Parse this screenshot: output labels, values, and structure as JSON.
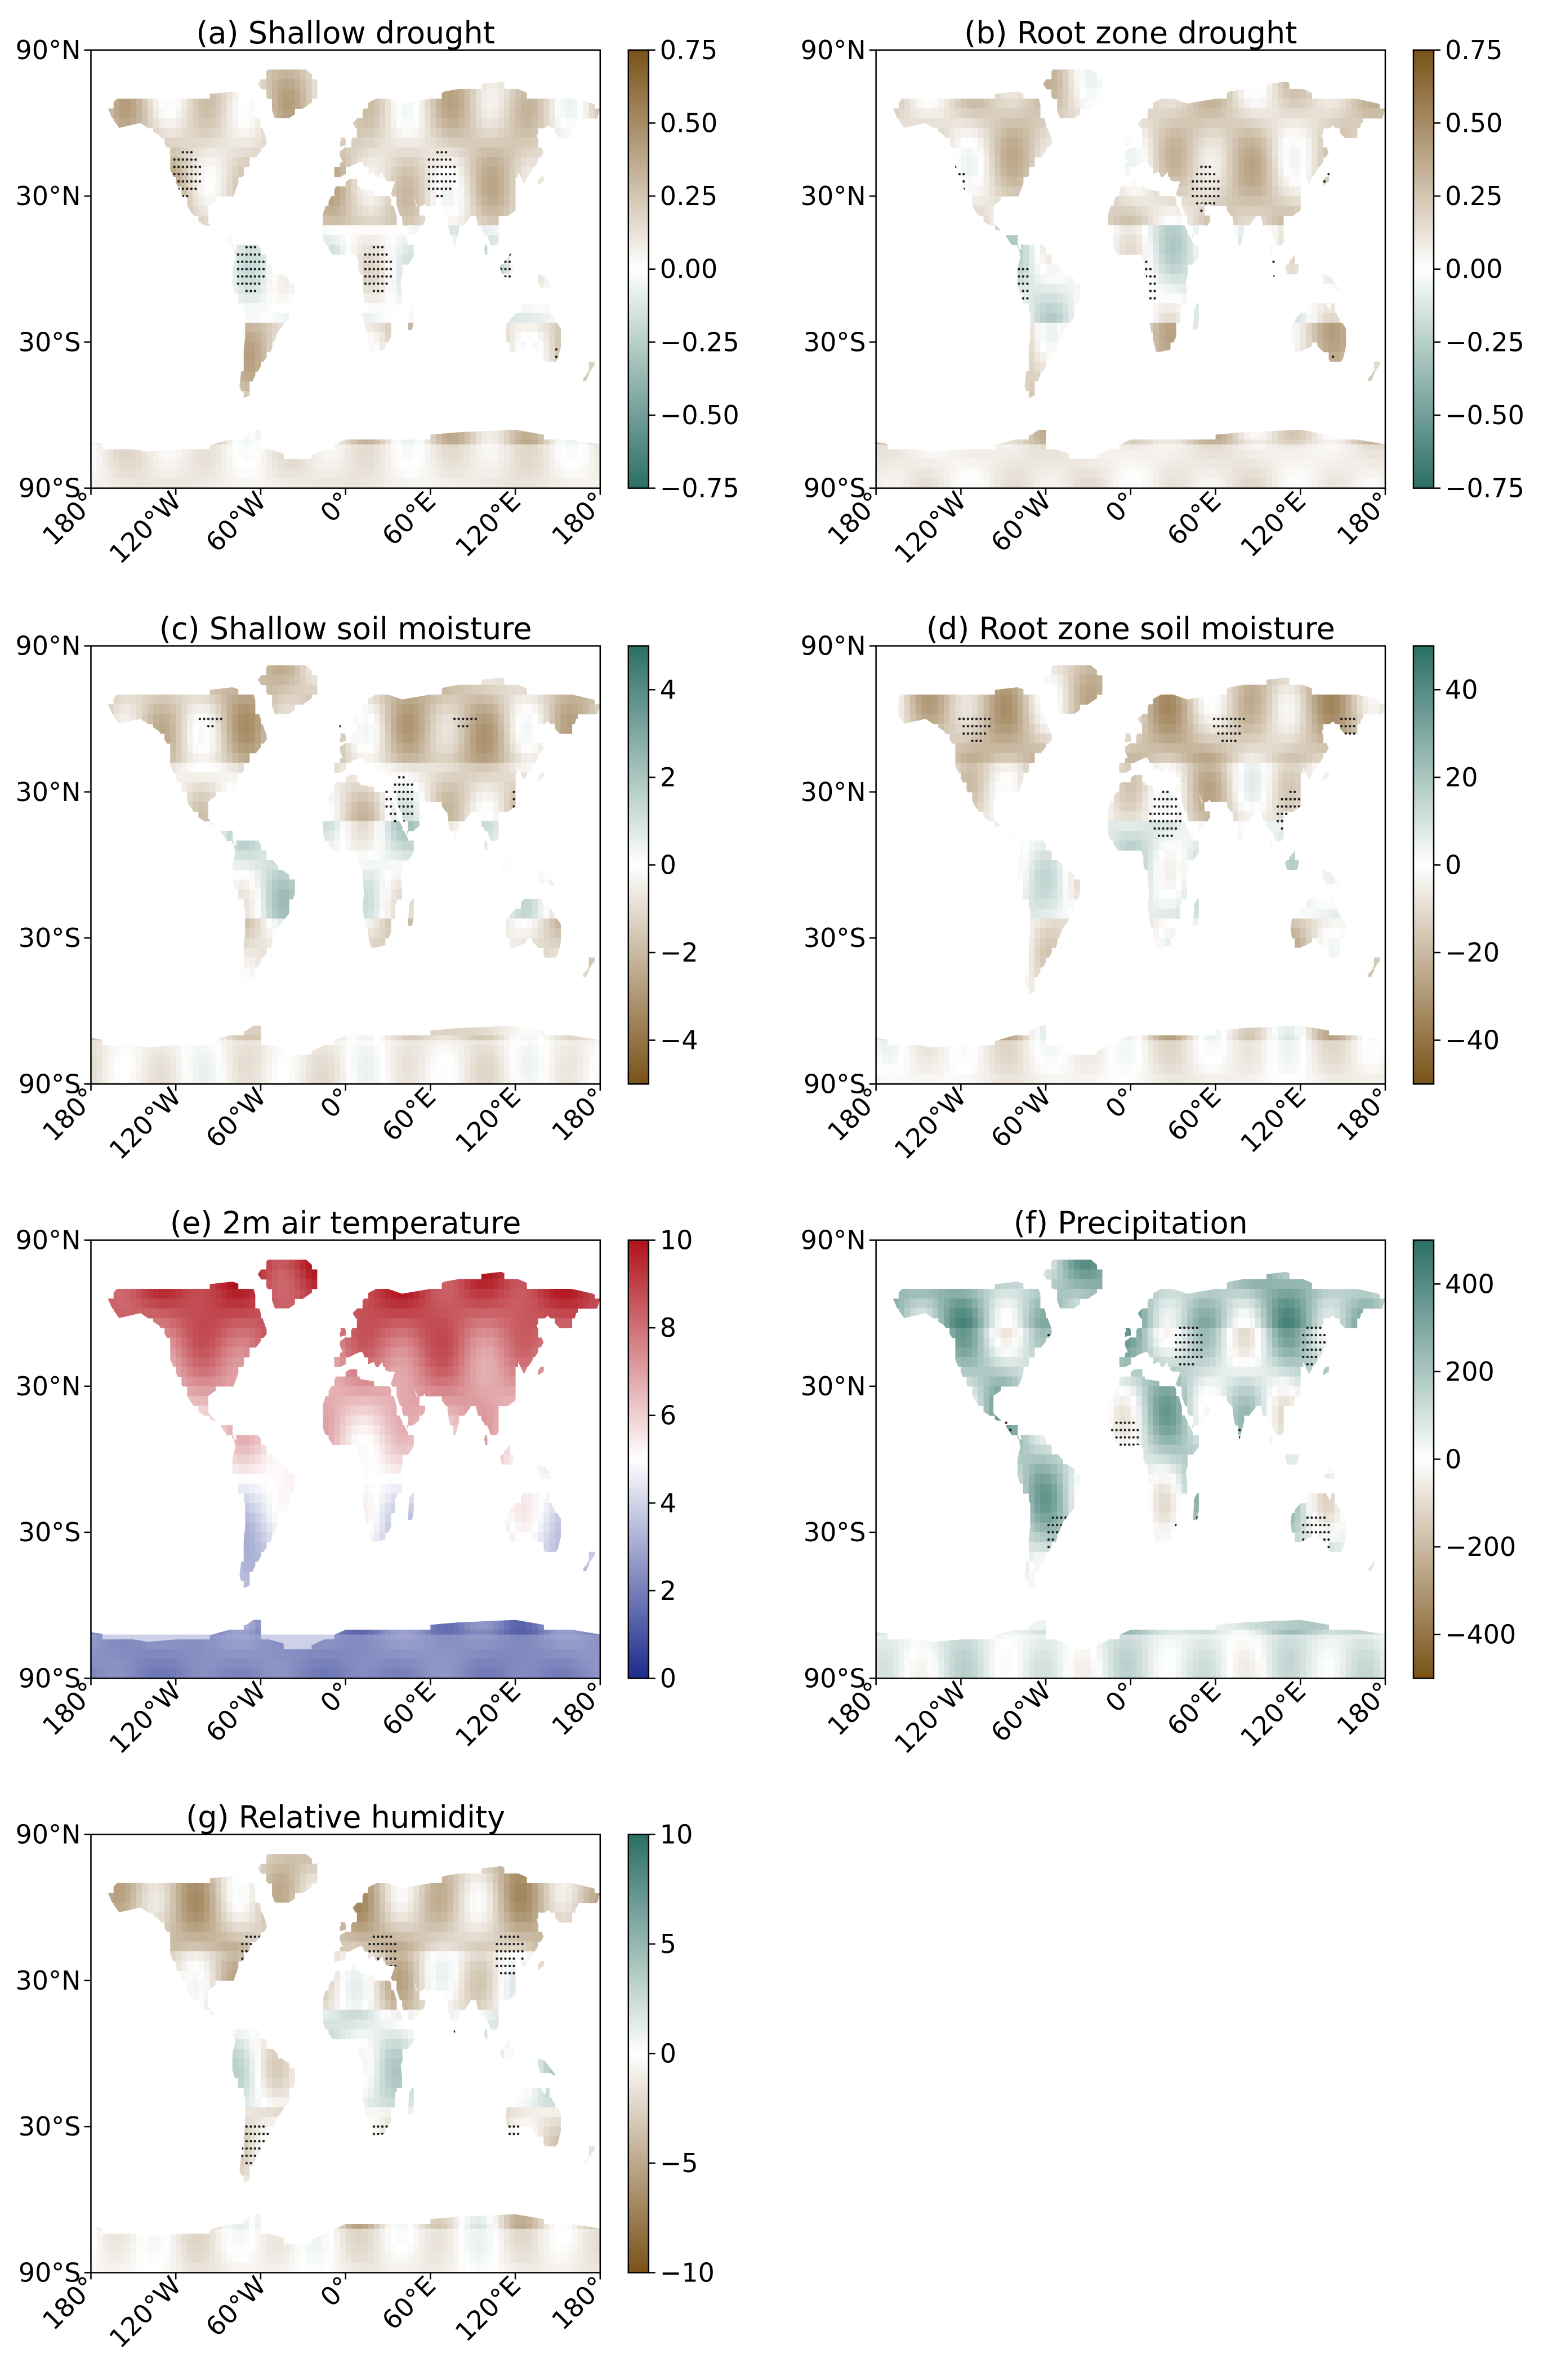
{
  "figure": {
    "x_ticks": [
      "180°",
      "120°W",
      "60°W",
      "0°",
      "60°E",
      "120°E",
      "180°"
    ],
    "y_ticks": [
      "90°N",
      "30°N",
      "30°S",
      "90°S"
    ]
  },
  "chart_data": [
    {
      "type": "heatmap",
      "title": "(a) Shallow drought",
      "xlim": [
        -180,
        180
      ],
      "ylim": [
        -90,
        90
      ],
      "colormap": [
        "#2b6f63",
        "#ffffff",
        "#7a5218"
      ],
      "clim": [
        -0.75,
        0.75
      ],
      "colorbar_ticks": [
        "0.75",
        "0.50",
        "0.25",
        "0.00",
        "−0.25",
        "−0.50",
        "−0.75"
      ],
      "stippling": true,
      "grid": false
    },
    {
      "type": "heatmap",
      "title": "(b) Root zone drought",
      "xlim": [
        -180,
        180
      ],
      "ylim": [
        -90,
        90
      ],
      "colormap": [
        "#2b6f63",
        "#ffffff",
        "#7a5218"
      ],
      "clim": [
        -0.75,
        0.75
      ],
      "colorbar_ticks": [
        "0.75",
        "0.50",
        "0.25",
        "0.00",
        "−0.25",
        "−0.50",
        "−0.75"
      ],
      "stippling": true,
      "grid": false
    },
    {
      "type": "heatmap",
      "title": "(c) Shallow soil moisture",
      "xlim": [
        -180,
        180
      ],
      "ylim": [
        -90,
        90
      ],
      "colormap": [
        "#7a5218",
        "#ffffff",
        "#2b6f63"
      ],
      "clim": [
        -5,
        5
      ],
      "colorbar_ticks": [
        "4",
        "2",
        "0",
        "−2",
        "−4"
      ],
      "stippling": true,
      "grid": false
    },
    {
      "type": "heatmap",
      "title": "(d) Root zone soil moisture",
      "xlim": [
        -180,
        180
      ],
      "ylim": [
        -90,
        90
      ],
      "colormap": [
        "#7a5218",
        "#ffffff",
        "#2b6f63"
      ],
      "clim": [
        -50,
        50
      ],
      "colorbar_ticks": [
        "40",
        "20",
        "0",
        "−20",
        "−40"
      ],
      "stippling": true,
      "grid": false
    },
    {
      "type": "heatmap",
      "title": "(e) 2m air temperature",
      "xlim": [
        -180,
        180
      ],
      "ylim": [
        -90,
        90
      ],
      "colormap": [
        "#1c2a8c",
        "#ffffff",
        "#b0121b"
      ],
      "clim": [
        0,
        10
      ],
      "colorbar_ticks": [
        "10",
        "8",
        "6",
        "4",
        "2",
        "0"
      ],
      "stippling": false,
      "grid": false
    },
    {
      "type": "heatmap",
      "title": "(f) Precipitation",
      "xlim": [
        -180,
        180
      ],
      "ylim": [
        -90,
        90
      ],
      "colormap": [
        "#7a5218",
        "#ffffff",
        "#2b6f63"
      ],
      "clim": [
        -500,
        500
      ],
      "colorbar_ticks": [
        "400",
        "200",
        "0",
        "−200",
        "−400"
      ],
      "stippling": true,
      "grid": false
    },
    {
      "type": "heatmap",
      "title": "(g) Relative humidity",
      "xlim": [
        -180,
        180
      ],
      "ylim": [
        -90,
        90
      ],
      "colormap": [
        "#7a5218",
        "#ffffff",
        "#2b6f63"
      ],
      "clim": [
        -10,
        10
      ],
      "colorbar_ticks": [
        "10",
        "5",
        "0",
        "−5",
        "−10"
      ],
      "stippling": true,
      "grid": false
    }
  ]
}
